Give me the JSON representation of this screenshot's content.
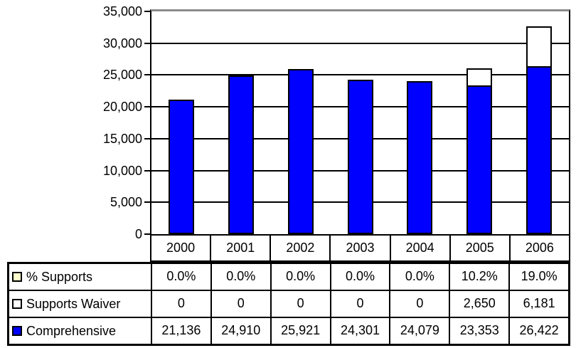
{
  "chart_data": {
    "type": "bar",
    "subtype": "stacked-column",
    "title": "",
    "categories": [
      "2000",
      "2001",
      "2002",
      "2003",
      "2004",
      "2005",
      "2006"
    ],
    "series": [
      {
        "name": "Comprehensive",
        "color": "#0000FF",
        "values": [
          21136,
          24910,
          25921,
          24301,
          24079,
          23353,
          26422
        ]
      },
      {
        "name": "Supports Waiver",
        "color": "#FFFFFF",
        "values": [
          0,
          0,
          0,
          0,
          0,
          2650,
          6181
        ]
      }
    ],
    "percent_series": {
      "name": "% Supports",
      "color": "#FFFFCC",
      "values": [
        "0.0%",
        "0.0%",
        "0.0%",
        "0.0%",
        "0.0%",
        "10.2%",
        "19.0%"
      ]
    },
    "ylim": [
      0,
      35000
    ],
    "ytick_interval": 5000,
    "yticks": [
      "35,000",
      "30,000",
      "25,000",
      "20,000",
      "15,000",
      "10,000",
      "5,000",
      "0"
    ],
    "grid": true,
    "legend_position": "table-below-left",
    "gridline_top_color": "#8C8C8C"
  },
  "table": {
    "year_headers": [
      "2000",
      "2001",
      "2002",
      "2003",
      "2004",
      "2005",
      "2006"
    ],
    "rows": [
      {
        "label": "% Supports",
        "swatch_color": "#FFFFCC",
        "values": [
          "0.0%",
          "0.0%",
          "0.0%",
          "0.0%",
          "0.0%",
          "10.2%",
          "19.0%"
        ]
      },
      {
        "label": "Supports Waiver",
        "swatch_color": "#FFFFFF",
        "values": [
          "0",
          "0",
          "0",
          "0",
          "0",
          "2,650",
          "6,181"
        ]
      },
      {
        "label": "Comprehensive",
        "swatch_color": "#0000FF",
        "values": [
          "21,136",
          "24,910",
          "25,921",
          "24,301",
          "24,079",
          "23,353",
          "26,422"
        ]
      }
    ]
  }
}
